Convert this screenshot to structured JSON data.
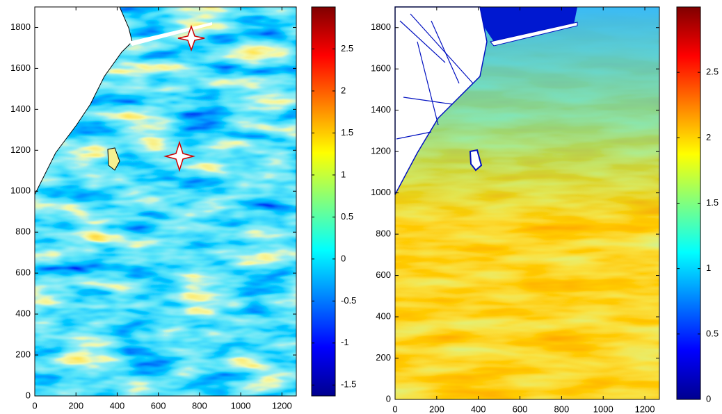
{
  "chart_data": [
    {
      "type": "heatmap",
      "colormap": "jet",
      "xlim": [
        0,
        1270
      ],
      "xticks": [
        0,
        200,
        400,
        600,
        800,
        1000,
        1200
      ],
      "ylim": [
        0,
        1900
      ],
      "yticks": [
        0,
        200,
        400,
        600,
        800,
        1000,
        1200,
        1400,
        1600,
        1800
      ],
      "clim": [
        -1.63,
        3.0
      ],
      "cticks": [
        -1.5,
        -1,
        -0.5,
        0,
        0.5,
        1,
        1.5,
        2,
        2.5
      ]
    },
    {
      "type": "heatmap",
      "colormap": "jet",
      "xlim": [
        0,
        1270
      ],
      "xticks": [
        0,
        200,
        400,
        600,
        800,
        1000,
        1200
      ],
      "ylim": [
        0,
        1900
      ],
      "yticks": [
        0,
        200,
        400,
        600,
        800,
        1000,
        1200,
        1400,
        1600,
        1800
      ],
      "clim": [
        0,
        3.0
      ],
      "cticks": [
        0,
        0.5,
        1,
        1.5,
        2,
        2.5
      ]
    }
  ]
}
